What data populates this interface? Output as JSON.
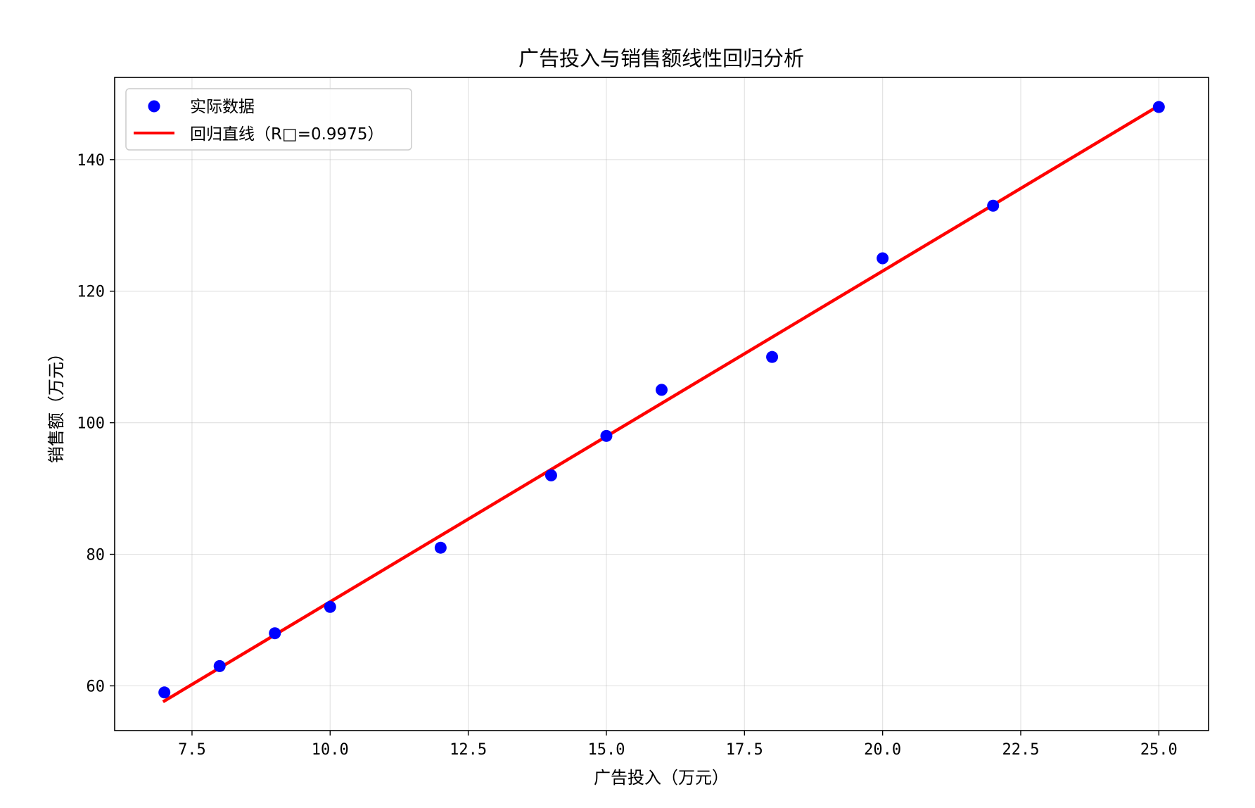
{
  "chart_data": {
    "type": "scatter",
    "title": "广告投入与销售额线性回归分析",
    "xlabel": "广告投入（万元）",
    "ylabel": "销售额（万元）",
    "xlim": [
      6.1,
      25.9
    ],
    "ylim": [
      53.2,
      152.5
    ],
    "xticks": [
      7.5,
      10.0,
      12.5,
      15.0,
      17.5,
      20.0,
      22.5,
      25.0
    ],
    "xtick_labels": [
      "7.5",
      "10.0",
      "12.5",
      "15.0",
      "17.5",
      "20.0",
      "22.5",
      "25.0"
    ],
    "yticks": [
      60,
      80,
      100,
      120,
      140
    ],
    "ytick_labels": [
      "60",
      "80",
      "100",
      "120",
      "140"
    ],
    "grid": true,
    "legend_position": "top-left",
    "series": [
      {
        "name": "实际数据",
        "kind": "scatter",
        "color": "#0000ff",
        "x": [
          7,
          8,
          9,
          10,
          12,
          14,
          15,
          16,
          18,
          20,
          22,
          25
        ],
        "y": [
          59,
          63,
          68,
          72,
          81,
          92,
          98,
          105,
          110,
          125,
          133,
          148
        ]
      },
      {
        "name": "回归直线（R□=0.9975）",
        "kind": "line",
        "color": "#ff0000",
        "x": [
          7,
          25
        ],
        "y": [
          57.7,
          148.2
        ]
      }
    ]
  }
}
